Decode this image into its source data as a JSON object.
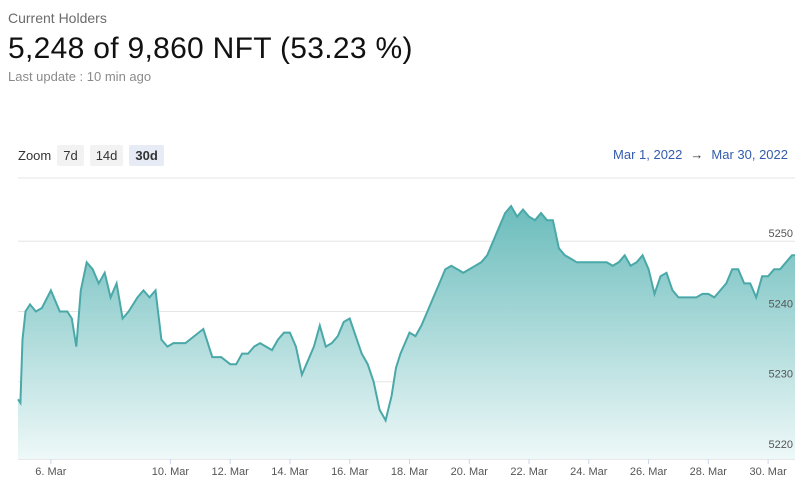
{
  "header": {
    "subtitle": "Current Holders",
    "headline": "5,248 of 9,860 NFT (53.23 %)",
    "last_update": "Last update : 10 min ago"
  },
  "zoom": {
    "label": "Zoom",
    "options": [
      "7d",
      "14d",
      "30d"
    ],
    "selected": "30d"
  },
  "range": {
    "start": "Mar 1, 2022",
    "arrow": "→",
    "end": "Mar 30, 2022"
  },
  "colors": {
    "line": "#4aa8a8",
    "fill_top": "#6bbcbc",
    "fill_bottom": "#eef8f8",
    "grid": "#e6e6e6",
    "link": "#335cad"
  },
  "chart_data": {
    "type": "area",
    "x_tick_labels": [
      "6. Mar",
      "10. Mar",
      "12. Mar",
      "14. Mar",
      "16. Mar",
      "18. Mar",
      "20. Mar",
      "22. Mar",
      "24. Mar",
      "26. Mar",
      "28. Mar",
      "30. Mar"
    ],
    "x_ticks_day": [
      6,
      10,
      12,
      14,
      16,
      18,
      20,
      22,
      24,
      26,
      28,
      30
    ],
    "xlim_day": [
      4.9,
      30.9
    ],
    "y_ticks": [
      5220,
      5230,
      5240,
      5250
    ],
    "ylim": [
      5219,
      5259
    ],
    "y_axis_side": "right",
    "grid": true,
    "series": [
      {
        "x_day": [
          4.9,
          4.98,
          5.05,
          5.15,
          5.3,
          5.5,
          5.7,
          6.0,
          6.3,
          6.55,
          6.7,
          6.85,
          7.0,
          7.2,
          7.4,
          7.6,
          7.8,
          8.0,
          8.2,
          8.4,
          8.6,
          8.75,
          8.9,
          9.1,
          9.3,
          9.5,
          9.7,
          9.9,
          10.1,
          10.3,
          10.5,
          10.8,
          11.1,
          11.4,
          11.7,
          12.0,
          12.2,
          12.4,
          12.6,
          12.8,
          13.0,
          13.2,
          13.4,
          13.6,
          13.8,
          14.0,
          14.2,
          14.4,
          14.6,
          14.8,
          15.0,
          15.2,
          15.4,
          15.6,
          15.8,
          16.0,
          16.2,
          16.4,
          16.6,
          16.8,
          17.0,
          17.2,
          17.4,
          17.55,
          17.7,
          17.85,
          18.0,
          18.2,
          18.4,
          18.6,
          18.8,
          19.0,
          19.2,
          19.4,
          19.6,
          19.8,
          20.0,
          20.2,
          20.4,
          20.6,
          20.8,
          21.0,
          21.2,
          21.4,
          21.6,
          21.8,
          22.0,
          22.2,
          22.4,
          22.6,
          22.8,
          23.0,
          23.2,
          23.4,
          23.6,
          23.8,
          24.0,
          24.2,
          24.4,
          24.6,
          24.8,
          25.0,
          25.2,
          25.4,
          25.6,
          25.8,
          26.0,
          26.2,
          26.4,
          26.6,
          26.8,
          27.0,
          27.2,
          27.4,
          27.6,
          27.8,
          28.0,
          28.2,
          28.4,
          28.6,
          28.8,
          29.0,
          29.2,
          29.4,
          29.6,
          29.8,
          30.0,
          30.2,
          30.4,
          30.6,
          30.8,
          30.9
        ],
        "y": [
          5227.5,
          5227.0,
          5236.0,
          5240.0,
          5241.0,
          5240.0,
          5240.5,
          5243.0,
          5240.0,
          5240.0,
          5239.0,
          5235.0,
          5243.0,
          5247.0,
          5246.0,
          5244.0,
          5245.5,
          5242.0,
          5244.0,
          5239.0,
          5240.0,
          5241.0,
          5242.0,
          5243.0,
          5242.0,
          5243.0,
          5236.0,
          5235.0,
          5235.5,
          5235.5,
          5235.5,
          5236.5,
          5237.5,
          5233.5,
          5233.5,
          5232.5,
          5232.5,
          5234.0,
          5234.0,
          5235.0,
          5235.5,
          5235.0,
          5234.5,
          5236.0,
          5237.0,
          5237.0,
          5235.0,
          5231.0,
          5233.0,
          5235.0,
          5238.0,
          5235.0,
          5235.5,
          5236.5,
          5238.5,
          5239.0,
          5236.5,
          5234.0,
          5232.5,
          5230.0,
          5226.0,
          5224.5,
          5228.0,
          5232.0,
          5234.0,
          5235.5,
          5237.0,
          5236.5,
          5238.0,
          5240.0,
          5242.0,
          5244.0,
          5246.0,
          5246.5,
          5246.0,
          5245.5,
          5246.0,
          5246.5,
          5247.0,
          5248.0,
          5250.0,
          5252.0,
          5254.0,
          5255.0,
          5253.5,
          5254.5,
          5253.5,
          5253.0,
          5254.0,
          5253.0,
          5253.0,
          5249.0,
          5248.0,
          5247.5,
          5247.0,
          5247.0,
          5247.0,
          5247.0,
          5247.0,
          5247.0,
          5246.5,
          5247.0,
          5248.0,
          5246.5,
          5247.0,
          5248.0,
          5246.0,
          5242.5,
          5245.0,
          5245.5,
          5243.0,
          5242.0,
          5242.0,
          5242.0,
          5242.0,
          5242.5,
          5242.5,
          5242.0,
          5243.0,
          5244.0,
          5246.0,
          5246.0,
          5244.0,
          5244.0,
          5242.0,
          5245.0,
          5245.0,
          5246.0,
          5246.0,
          5247.0,
          5248.0,
          5248.0
        ]
      }
    ]
  }
}
